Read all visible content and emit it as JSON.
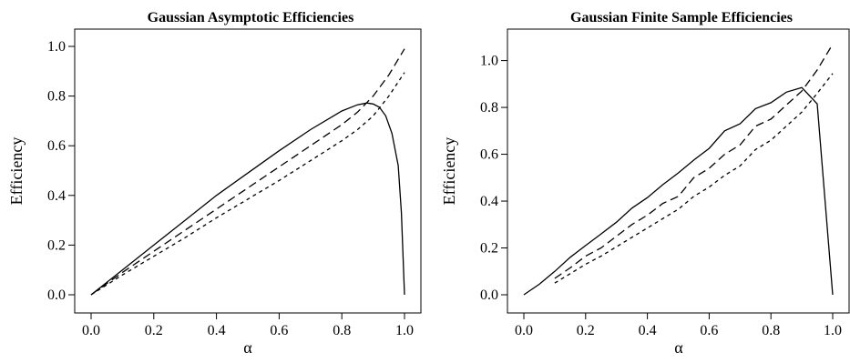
{
  "chart_data": [
    {
      "type": "line",
      "title": "Gaussian Asymptotic Efficiencies",
      "xlabel": "α",
      "ylabel": "Efficiency",
      "xlim": [
        0.0,
        1.0
      ],
      "ylim": [
        0.0,
        1.0
      ],
      "xticks": [
        "0.0",
        "0.2",
        "0.4",
        "0.6",
        "0.8",
        "1.0"
      ],
      "yticks": [
        "0.0",
        "0.2",
        "0.4",
        "0.6",
        "0.8",
        "1.0"
      ],
      "grid": false,
      "legend": "none",
      "series": [
        {
          "style": "solid",
          "x": [
            0.0,
            0.1,
            0.2,
            0.3,
            0.4,
            0.5,
            0.6,
            0.7,
            0.8,
            0.85,
            0.88,
            0.9,
            0.92,
            0.94,
            0.96,
            0.98,
            0.99,
            1.0
          ],
          "y": [
            0.0,
            0.1,
            0.2,
            0.3,
            0.4,
            0.49,
            0.58,
            0.665,
            0.74,
            0.765,
            0.772,
            0.768,
            0.755,
            0.72,
            0.65,
            0.52,
            0.33,
            0.0
          ]
        },
        {
          "style": "long-dashed",
          "x": [
            0.0,
            0.1,
            0.2,
            0.3,
            0.4,
            0.5,
            0.6,
            0.7,
            0.8,
            0.85,
            0.9,
            0.95,
            1.0
          ],
          "y": [
            0.0,
            0.09,
            0.175,
            0.26,
            0.345,
            0.43,
            0.515,
            0.6,
            0.685,
            0.735,
            0.8,
            0.885,
            0.99
          ]
        },
        {
          "style": "short-dashed",
          "x": [
            0.0,
            0.1,
            0.2,
            0.3,
            0.4,
            0.5,
            0.6,
            0.7,
            0.8,
            0.85,
            0.9,
            0.95,
            1.0
          ],
          "y": [
            0.0,
            0.08,
            0.155,
            0.23,
            0.31,
            0.385,
            0.46,
            0.54,
            0.62,
            0.665,
            0.72,
            0.8,
            0.895
          ]
        }
      ]
    },
    {
      "type": "line",
      "title": "Gaussian Finite Sample Efficiencies",
      "xlabel": "α",
      "ylabel": "Efficiency",
      "xlim": [
        0.0,
        1.0
      ],
      "ylim": [
        0.0,
        1.08
      ],
      "xticks": [
        "0.0",
        "0.2",
        "0.4",
        "0.6",
        "0.8",
        "1.0"
      ],
      "yticks": [
        "0.0",
        "0.2",
        "0.4",
        "0.6",
        "0.8",
        "1.0"
      ],
      "grid": false,
      "legend": "none",
      "series": [
        {
          "style": "solid",
          "x": [
            0.0,
            0.05,
            0.1,
            0.15,
            0.2,
            0.25,
            0.3,
            0.35,
            0.4,
            0.45,
            0.5,
            0.55,
            0.6,
            0.65,
            0.7,
            0.75,
            0.8,
            0.85,
            0.9,
            0.95,
            1.0
          ],
          "y": [
            0.0,
            0.045,
            0.1,
            0.16,
            0.21,
            0.26,
            0.31,
            0.37,
            0.415,
            0.47,
            0.52,
            0.575,
            0.625,
            0.7,
            0.73,
            0.795,
            0.82,
            0.865,
            0.885,
            0.815,
            0.0
          ]
        },
        {
          "style": "long-dashed",
          "x": [
            0.1,
            0.15,
            0.2,
            0.25,
            0.3,
            0.35,
            0.4,
            0.45,
            0.5,
            0.55,
            0.6,
            0.65,
            0.7,
            0.75,
            0.8,
            0.85,
            0.9,
            0.95,
            1.0
          ],
          "y": [
            0.07,
            0.115,
            0.165,
            0.2,
            0.25,
            0.3,
            0.34,
            0.39,
            0.42,
            0.5,
            0.54,
            0.6,
            0.64,
            0.72,
            0.75,
            0.81,
            0.87,
            0.96,
            1.07
          ]
        },
        {
          "style": "short-dashed",
          "x": [
            0.1,
            0.15,
            0.2,
            0.25,
            0.3,
            0.35,
            0.4,
            0.45,
            0.5,
            0.55,
            0.6,
            0.65,
            0.7,
            0.75,
            0.8,
            0.85,
            0.9,
            0.95,
            1.0
          ],
          "y": [
            0.05,
            0.09,
            0.13,
            0.165,
            0.205,
            0.245,
            0.285,
            0.325,
            0.365,
            0.42,
            0.46,
            0.51,
            0.55,
            0.62,
            0.66,
            0.72,
            0.78,
            0.86,
            0.945
          ]
        }
      ]
    }
  ]
}
